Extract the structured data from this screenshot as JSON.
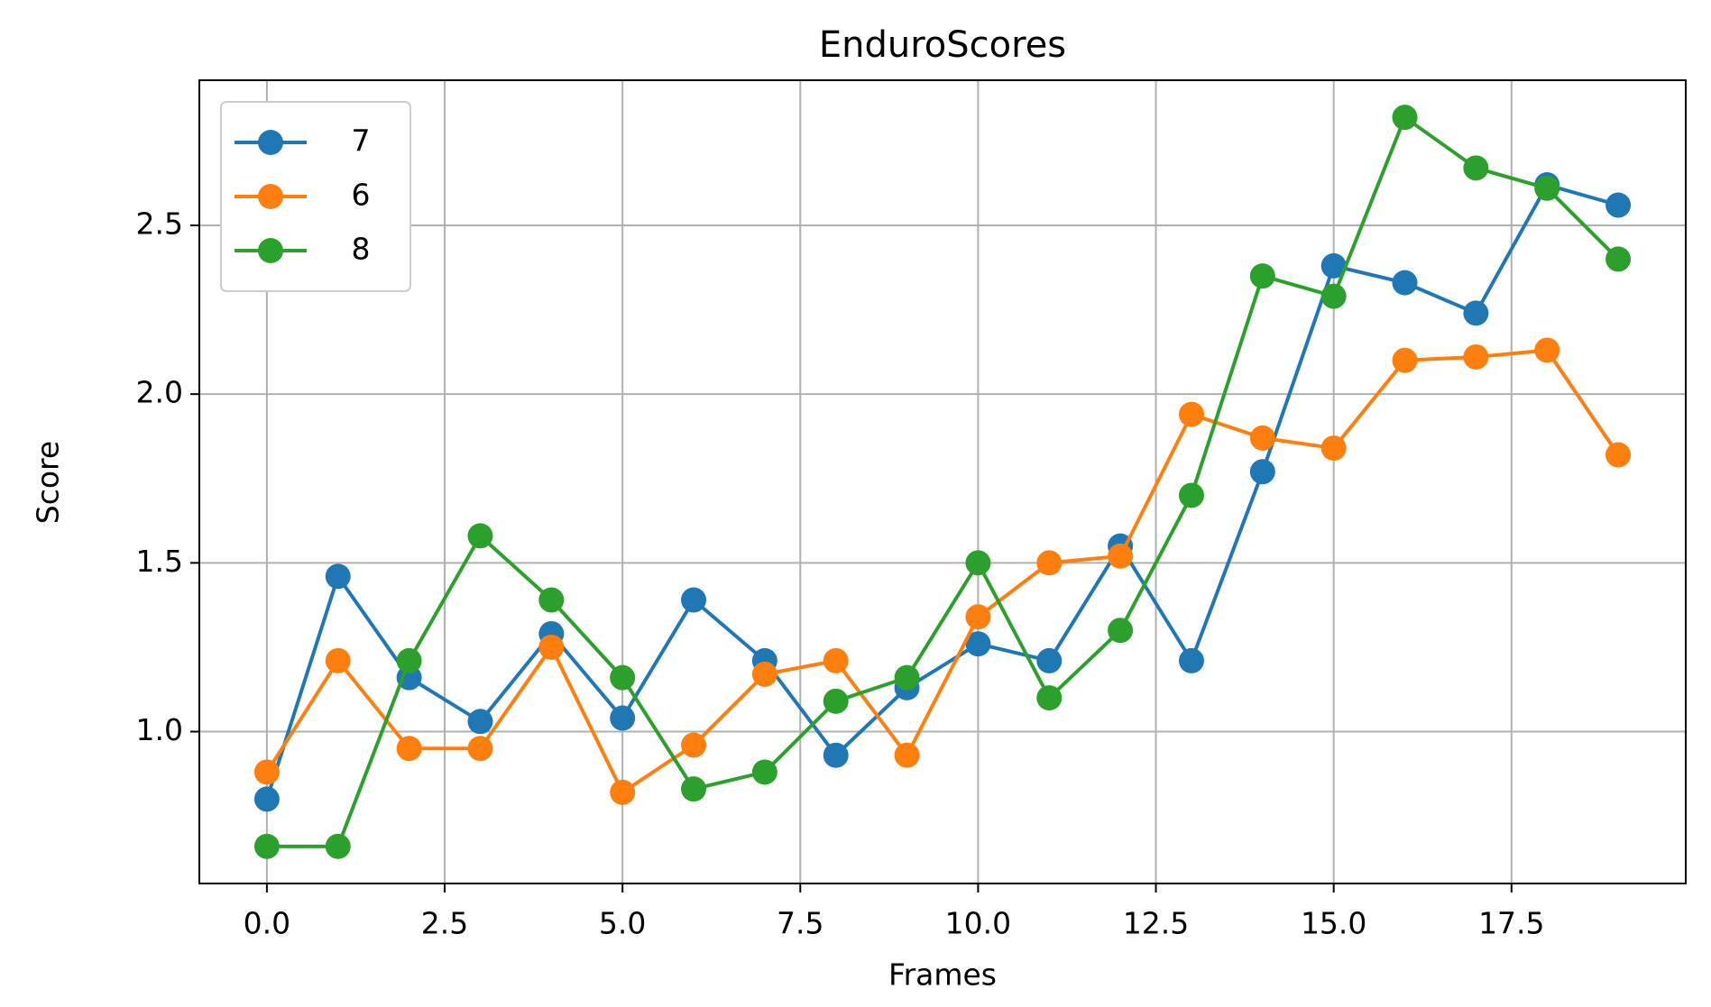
{
  "chart_data": {
    "type": "line",
    "title": "EnduroScores",
    "x_label": "Frames",
    "y_label": "Score",
    "x": [
      0,
      1,
      2,
      3,
      4,
      5,
      6,
      7,
      8,
      9,
      10,
      11,
      12,
      13,
      14,
      15,
      16,
      17,
      18,
      19
    ],
    "series": [
      {
        "name": "7",
        "color": "#1f77b4",
        "values": [
          0.8,
          1.46,
          1.16,
          1.03,
          1.29,
          1.04,
          1.39,
          1.21,
          0.93,
          1.13,
          1.26,
          1.21,
          1.55,
          1.21,
          1.77,
          2.38,
          2.33,
          2.24,
          2.62,
          2.56
        ]
      },
      {
        "name": "6",
        "color": "#ff7f0e",
        "values": [
          0.88,
          1.21,
          0.95,
          0.95,
          1.25,
          0.82,
          0.96,
          1.17,
          1.21,
          0.93,
          1.34,
          1.5,
          1.52,
          1.94,
          1.87,
          1.84,
          2.1,
          2.11,
          2.13,
          1.82
        ]
      },
      {
        "name": "8",
        "color": "#2ca02c",
        "values": [
          0.66,
          0.66,
          1.21,
          1.58,
          1.39,
          1.16,
          0.83,
          0.88,
          1.09,
          1.16,
          1.5,
          1.1,
          1.3,
          1.7,
          2.35,
          2.29,
          2.82,
          2.67,
          2.61,
          2.4
        ]
      }
    ],
    "xlim": [
      -0.95,
      19.95
    ],
    "ylim": [
      0.55,
      2.93
    ],
    "xticks": [
      {
        "value": 0,
        "label": "0.0"
      },
      {
        "value": 2.5,
        "label": "2.5"
      },
      {
        "value": 5,
        "label": "5.0"
      },
      {
        "value": 7.5,
        "label": "7.5"
      },
      {
        "value": 10,
        "label": "10.0"
      },
      {
        "value": 12.5,
        "label": "12.5"
      },
      {
        "value": 15,
        "label": "15.0"
      },
      {
        "value": 17.5,
        "label": "17.5"
      }
    ],
    "yticks": [
      {
        "value": 1,
        "label": "1.0"
      },
      {
        "value": 1.5,
        "label": "1.5"
      },
      {
        "value": 2,
        "label": "2.0"
      },
      {
        "value": 2.5,
        "label": "2.5"
      }
    ],
    "grid": true,
    "legend": "upper left"
  }
}
